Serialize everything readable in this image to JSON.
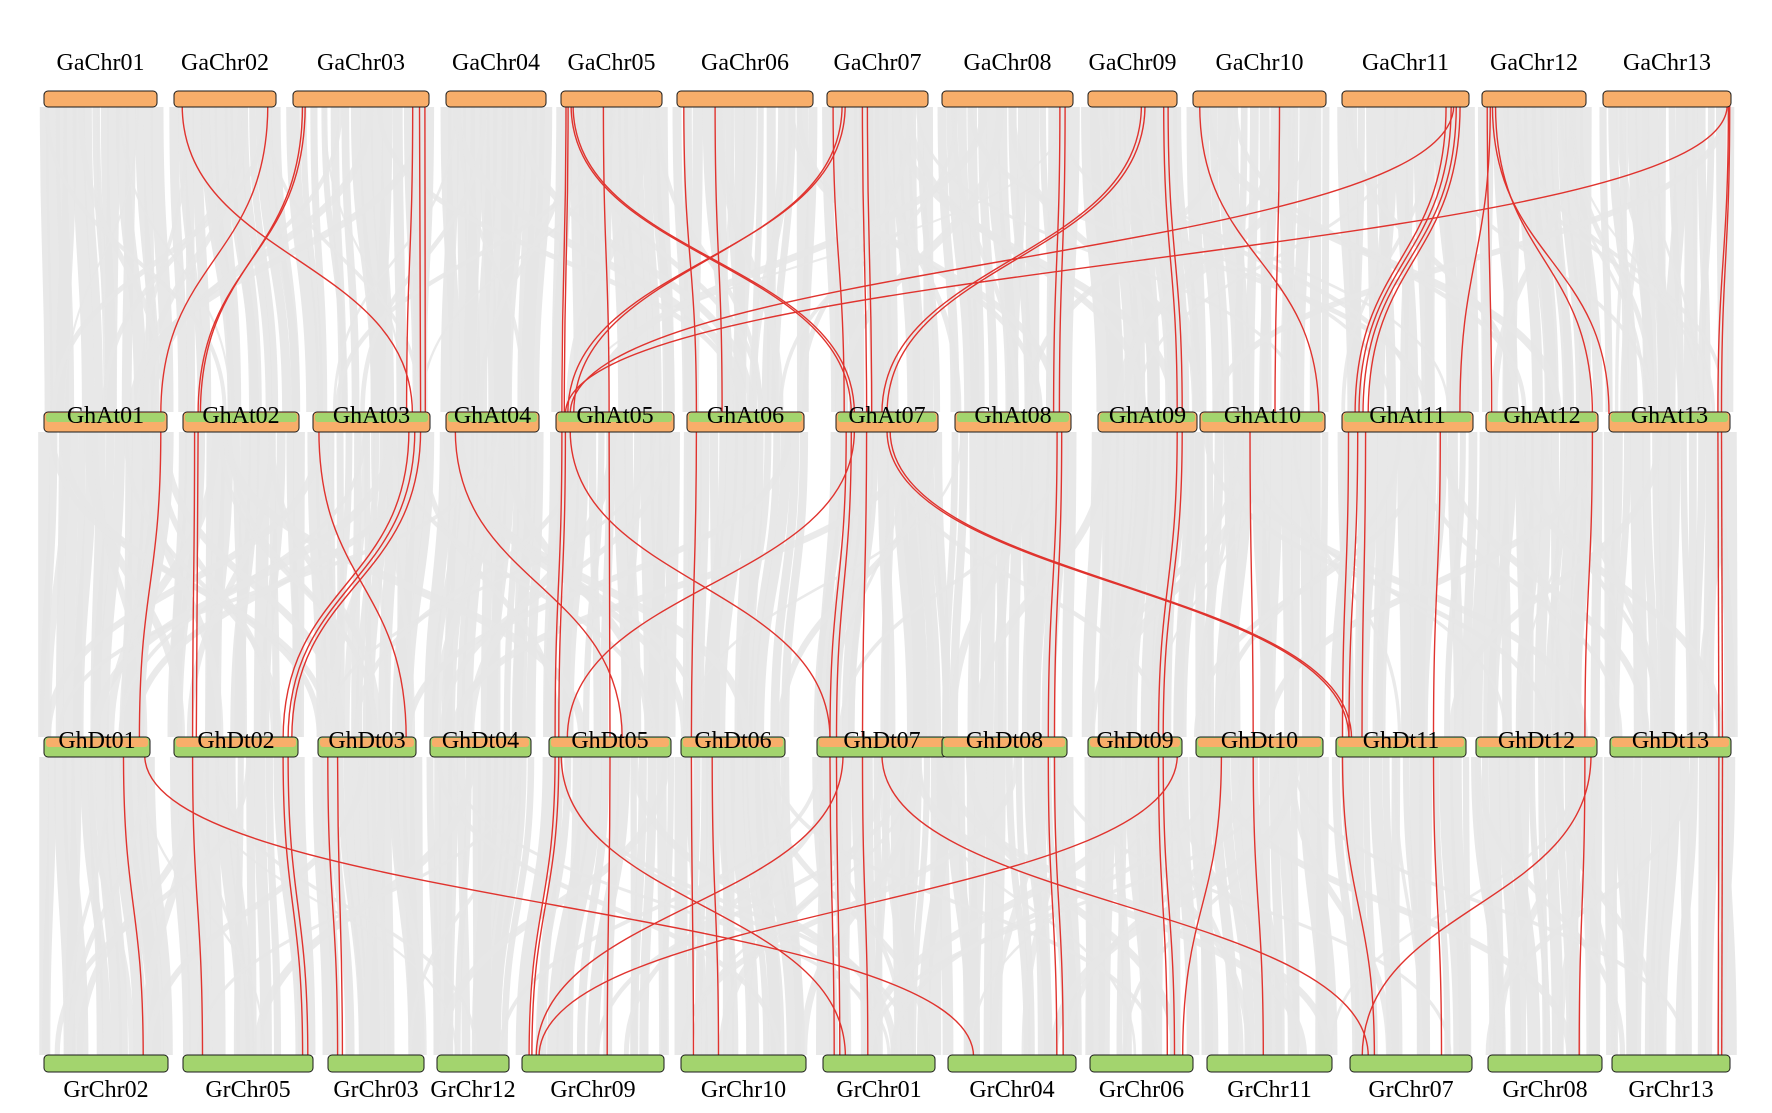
{
  "colors": {
    "background": "#ffffff",
    "ga_bar": "#F8AE6A",
    "gr_bar": "#A3D46E",
    "ghat_fill": "#F8AE6A",
    "ghat_stripe": "#A3D46E",
    "ghdt_fill": "#A3D46E",
    "ghdt_stripe": "#F8AE6A",
    "bar_outline": "#1a1a1a",
    "grey_link": "#e6e6e6",
    "red_link": "#E0332E"
  },
  "rows": {
    "ga": {
      "labels": [
        "GaChr01",
        "GaChr02",
        "GaChr03",
        "GaChr04",
        "GaChr05",
        "GaChr06",
        "GaChr07",
        "GaChr08",
        "GaChr09",
        "GaChr10",
        "GaChr11",
        "GaChr12",
        "GaChr13"
      ]
    },
    "ghat": {
      "labels": [
        "GhAt01",
        "GhAt02",
        "GhAt03",
        "GhAt04",
        "GhAt05",
        "GhAt06",
        "GhAt07",
        "GhAt08",
        "GhAt09",
        "GhAt10",
        "GhAt11",
        "GhAt12",
        "GhAt13"
      ]
    },
    "ghdt": {
      "labels": [
        "GhDt01",
        "GhDt02",
        "GhDt03",
        "GhDt04",
        "GhDt05",
        "GhDt06",
        "GhDt07",
        "GhDt08",
        "GhDt09",
        "GhDt10",
        "GhDt11",
        "GhDt12",
        "GhDt13"
      ]
    },
    "gr": {
      "labels": [
        "GrChr02",
        "GrChr05",
        "GrChr03",
        "GrChr12",
        "GrChr09",
        "GrChr10",
        "GrChr01",
        "GrChr04",
        "GrChr06",
        "GrChr11",
        "GrChr07",
        "GrChr08",
        "GrChr13"
      ]
    }
  },
  "links": {
    "red": [
      {
        "from": "ga",
        "fc": 1,
        "fp": 0.08,
        "to": "ghat",
        "tc": 2,
        "tp": 0.85
      },
      {
        "from": "ga",
        "fc": 1,
        "fp": 0.92,
        "to": "ghat",
        "tc": 0,
        "tp": 0.95
      },
      {
        "from": "ga",
        "fc": 2,
        "fp": 0.07,
        "to": "ghat",
        "tc": 1,
        "tp": 0.15
      },
      {
        "from": "ga",
        "fc": 2,
        "fp": 0.09,
        "to": "ghat",
        "tc": 1,
        "tp": 0.13
      },
      {
        "from": "ga",
        "fc": 2,
        "fp": 0.88,
        "to": "ghat",
        "tc": 2,
        "tp": 0.8
      },
      {
        "from": "ga",
        "fc": 2,
        "fp": 0.93,
        "to": "ghat",
        "tc": 2,
        "tp": 0.92
      },
      {
        "from": "ga",
        "fc": 2,
        "fp": 0.97,
        "to": "ghat",
        "tc": 2,
        "tp": 0.96
      },
      {
        "from": "ga",
        "fc": 4,
        "fp": 0.05,
        "to": "ghat",
        "tc": 4,
        "tp": 0.05
      },
      {
        "from": "ga",
        "fc": 4,
        "fp": 0.07,
        "to": "ghat",
        "tc": 4,
        "tp": 0.07
      },
      {
        "from": "ga",
        "fc": 4,
        "fp": 0.1,
        "to": "ghat",
        "tc": 6,
        "tp": 0.15
      },
      {
        "from": "ga",
        "fc": 4,
        "fp": 0.12,
        "to": "ghat",
        "tc": 6,
        "tp": 0.18
      },
      {
        "from": "ga",
        "fc": 4,
        "fp": 0.42,
        "to": "ghat",
        "tc": 4,
        "tp": 0.45
      },
      {
        "from": "ga",
        "fc": 5,
        "fp": 0.05,
        "to": "ghat",
        "tc": 5,
        "tp": 0.08
      },
      {
        "from": "ga",
        "fc": 5,
        "fp": 0.28,
        "to": "ghat",
        "tc": 5,
        "tp": 0.3
      },
      {
        "from": "ga",
        "fc": 6,
        "fp": 0.06,
        "to": "ghat",
        "tc": 6,
        "tp": 0.08
      },
      {
        "from": "ga",
        "fc": 6,
        "fp": 0.15,
        "to": "ghat",
        "tc": 4,
        "tp": 0.15
      },
      {
        "from": "ga",
        "fc": 6,
        "fp": 0.18,
        "to": "ghat",
        "tc": 4,
        "tp": 0.1
      },
      {
        "from": "ga",
        "fc": 6,
        "fp": 0.35,
        "to": "ghat",
        "tc": 6,
        "tp": 0.3
      },
      {
        "from": "ga",
        "fc": 6,
        "fp": 0.4,
        "to": "ghat",
        "tc": 6,
        "tp": 0.35
      },
      {
        "from": "ga",
        "fc": 7,
        "fp": 0.9,
        "to": "ghat",
        "tc": 7,
        "tp": 0.85
      },
      {
        "from": "ga",
        "fc": 7,
        "fp": 0.94,
        "to": "ghat",
        "tc": 7,
        "tp": 0.9
      },
      {
        "from": "ga",
        "fc": 8,
        "fp": 0.6,
        "to": "ghat",
        "tc": 6,
        "tp": 0.45
      },
      {
        "from": "ga",
        "fc": 8,
        "fp": 0.64,
        "to": "ghat",
        "tc": 6,
        "tp": 0.5
      },
      {
        "from": "ga",
        "fc": 8,
        "fp": 0.85,
        "to": "ghat",
        "tc": 8,
        "tp": 0.8
      },
      {
        "from": "ga",
        "fc": 8,
        "fp": 0.9,
        "to": "ghat",
        "tc": 8,
        "tp": 0.85
      },
      {
        "from": "ga",
        "fc": 9,
        "fp": 0.05,
        "to": "ghat",
        "tc": 9,
        "tp": 0.95
      },
      {
        "from": "ga",
        "fc": 9,
        "fp": 0.65,
        "to": "ghat",
        "tc": 9,
        "tp": 0.6
      },
      {
        "from": "ga",
        "fc": 10,
        "fp": 0.82,
        "to": "ghat",
        "tc": 10,
        "tp": 0.1
      },
      {
        "from": "ga",
        "fc": 10,
        "fp": 0.86,
        "to": "ghat",
        "tc": 10,
        "tp": 0.13
      },
      {
        "from": "ga",
        "fc": 10,
        "fp": 0.9,
        "to": "ghat",
        "tc": 10,
        "tp": 0.16
      },
      {
        "from": "ga",
        "fc": 10,
        "fp": 0.93,
        "to": "ghat",
        "tc": 10,
        "tp": 0.2
      },
      {
        "from": "ga",
        "fc": 10,
        "fp": 0.88,
        "to": "ghat",
        "tc": 4,
        "tp": 0.12
      },
      {
        "from": "ga",
        "fc": 11,
        "fp": 0.05,
        "to": "ghat",
        "tc": 11,
        "tp": 0.05
      },
      {
        "from": "ga",
        "fc": 11,
        "fp": 0.08,
        "to": "ghat",
        "tc": 10,
        "tp": 0.9
      },
      {
        "from": "ga",
        "fc": 11,
        "fp": 0.1,
        "to": "ghat",
        "tc": 12,
        "tp": 0.0
      },
      {
        "from": "ga",
        "fc": 11,
        "fp": 0.13,
        "to": "ghat",
        "tc": 11,
        "tp": 0.95
      },
      {
        "from": "ga",
        "fc": 12,
        "fp": 0.98,
        "to": "ghat",
        "tc": 12,
        "tp": 0.9
      },
      {
        "from": "ga",
        "fc": 12,
        "fp": 0.99,
        "to": "ghat",
        "tc": 12,
        "tp": 0.93
      },
      {
        "from": "ga",
        "fc": 12,
        "fp": 0.97,
        "to": "ghat",
        "tc": 4,
        "tp": 0.08
      },
      {
        "from": "ghat",
        "tc": 0,
        "fc": 0,
        "fp": 0.95,
        "to": "ghdt",
        "tp": 0.9
      },
      {
        "from": "ghat",
        "fc": 1,
        "fp": 0.1,
        "to": "ghdt",
        "tc": 1,
        "tp": 0.15
      },
      {
        "from": "ghat",
        "fc": 1,
        "fp": 0.13,
        "to": "ghdt",
        "tc": 1,
        "tp": 0.18
      },
      {
        "from": "ghat",
        "fc": 2,
        "fp": 0.05,
        "to": "ghdt",
        "tc": 2,
        "tp": 0.9
      },
      {
        "from": "ghat",
        "fc": 2,
        "fp": 0.82,
        "to": "ghdt",
        "tc": 1,
        "tp": 0.88
      },
      {
        "from": "ghat",
        "fc": 2,
        "fp": 0.87,
        "to": "ghdt",
        "tc": 1,
        "tp": 0.92
      },
      {
        "from": "ghat",
        "fc": 2,
        "fp": 0.92,
        "to": "ghdt",
        "tc": 1,
        "tp": 0.95
      },
      {
        "from": "ghat",
        "fc": 3,
        "fp": 0.1,
        "to": "ghdt",
        "tc": 4,
        "tp": 0.6
      },
      {
        "from": "ghat",
        "fc": 4,
        "fp": 0.05,
        "to": "ghdt",
        "tc": 4,
        "tp": 0.05
      },
      {
        "from": "ghat",
        "fc": 4,
        "fp": 0.08,
        "to": "ghdt",
        "tc": 4,
        "tp": 0.08
      },
      {
        "from": "ghat",
        "fc": 4,
        "fp": 0.12,
        "to": "ghdt",
        "tc": 6,
        "tp": 0.1
      },
      {
        "from": "ghat",
        "fc": 4,
        "fp": 0.45,
        "to": "ghdt",
        "tc": 4,
        "tp": 0.5
      },
      {
        "from": "ghat",
        "fc": 5,
        "fp": 0.08,
        "to": "ghdt",
        "tc": 5,
        "tp": 0.1
      },
      {
        "from": "ghat",
        "fc": 6,
        "fp": 0.1,
        "to": "ghdt",
        "tc": 6,
        "tp": 0.1
      },
      {
        "from": "ghat",
        "fc": 6,
        "fp": 0.15,
        "to": "ghdt",
        "tc": 6,
        "tp": 0.15
      },
      {
        "from": "ghat",
        "fc": 6,
        "fp": 0.3,
        "to": "ghdt",
        "tc": 6,
        "tp": 0.35
      },
      {
        "from": "ghat",
        "fc": 6,
        "fp": 0.18,
        "to": "ghdt",
        "tc": 4,
        "tp": 0.15
      },
      {
        "from": "ghat",
        "fc": 6,
        "fp": 0.5,
        "to": "ghdt",
        "tc": 10,
        "tp": 0.1
      },
      {
        "from": "ghat",
        "fc": 6,
        "fp": 0.53,
        "to": "ghdt",
        "tc": 10,
        "tp": 0.12
      },
      {
        "from": "ghat",
        "fc": 7,
        "fp": 0.88,
        "to": "ghdt",
        "tc": 7,
        "tp": 0.85
      },
      {
        "from": "ghat",
        "fc": 7,
        "fp": 0.92,
        "to": "ghdt",
        "tc": 7,
        "tp": 0.9
      },
      {
        "from": "ghat",
        "fc": 8,
        "fp": 0.8,
        "to": "ghdt",
        "tc": 8,
        "tp": 0.75
      },
      {
        "from": "ghat",
        "fc": 8,
        "fp": 0.85,
        "to": "ghdt",
        "tc": 8,
        "tp": 0.8
      },
      {
        "from": "ghat",
        "fc": 9,
        "fp": 0.4,
        "to": "ghdt",
        "tc": 9,
        "tp": 0.45
      },
      {
        "from": "ghat",
        "fc": 10,
        "fp": 0.05,
        "to": "ghdt",
        "tc": 10,
        "tp": 0.05
      },
      {
        "from": "ghat",
        "fc": 10,
        "fp": 0.12,
        "to": "ghdt",
        "tc": 10,
        "tp": 0.1
      },
      {
        "from": "ghat",
        "fc": 10,
        "fp": 0.18,
        "to": "ghdt",
        "tc": 10,
        "tp": 0.2
      },
      {
        "from": "ghat",
        "fc": 10,
        "fp": 0.75,
        "to": "ghdt",
        "tc": 10,
        "tp": 0.75
      },
      {
        "from": "ghat",
        "fc": 11,
        "fp": 0.95,
        "to": "ghdt",
        "tc": 11,
        "tp": 0.9
      },
      {
        "from": "ghat",
        "fc": 12,
        "fp": 0.9,
        "to": "ghdt",
        "tc": 12,
        "tp": 0.9
      },
      {
        "from": "ghat",
        "fc": 12,
        "fp": 0.93,
        "to": "ghdt",
        "tc": 12,
        "tp": 0.93
      },
      {
        "from": "ghdt",
        "fc": 0,
        "fp": 0.75,
        "to": "gr",
        "tc": 0,
        "tp": 0.8
      },
      {
        "from": "ghdt",
        "fc": 0,
        "fp": 0.95,
        "to": "gr",
        "tc": 7,
        "tp": 0.2
      },
      {
        "from": "ghdt",
        "fc": 1,
        "fp": 0.15,
        "to": "gr",
        "tc": 1,
        "tp": 0.15
      },
      {
        "from": "ghdt",
        "fc": 1,
        "fp": 0.88,
        "to": "gr",
        "tc": 1,
        "tp": 0.92
      },
      {
        "from": "ghdt",
        "fc": 1,
        "fp": 0.92,
        "to": "gr",
        "tc": 1,
        "tp": 0.96
      },
      {
        "from": "ghdt",
        "fc": 2,
        "fp": 0.1,
        "to": "gr",
        "tc": 2,
        "tp": 0.1
      },
      {
        "from": "ghdt",
        "fc": 2,
        "fp": 0.2,
        "to": "gr",
        "tc": 2,
        "tp": 0.15
      },
      {
        "from": "ghdt",
        "fc": 4,
        "fp": 0.05,
        "to": "gr",
        "tc": 4,
        "tp": 0.05
      },
      {
        "from": "ghdt",
        "fc": 4,
        "fp": 0.08,
        "to": "gr",
        "tc": 4,
        "tp": 0.07
      },
      {
        "from": "ghdt",
        "fc": 4,
        "fp": 0.1,
        "to": "gr",
        "tc": 6,
        "tp": 0.2
      },
      {
        "from": "ghdt",
        "fc": 4,
        "fp": 0.5,
        "to": "gr",
        "tc": 4,
        "tp": 0.6
      },
      {
        "from": "ghdt",
        "fc": 5,
        "fp": 0.1,
        "to": "gr",
        "tc": 5,
        "tp": 0.1
      },
      {
        "from": "ghdt",
        "fc": 5,
        "fp": 0.3,
        "to": "gr",
        "tc": 5,
        "tp": 0.3
      },
      {
        "from": "ghdt",
        "fc": 6,
        "fp": 0.1,
        "to": "gr",
        "tc": 6,
        "tp": 0.1
      },
      {
        "from": "ghdt",
        "fc": 6,
        "fp": 0.15,
        "to": "gr",
        "tc": 6,
        "tp": 0.15
      },
      {
        "from": "ghdt",
        "fc": 6,
        "fp": 0.35,
        "to": "gr",
        "tc": 6,
        "tp": 0.4
      },
      {
        "from": "ghdt",
        "fc": 6,
        "fp": 0.2,
        "to": "gr",
        "tc": 4,
        "tp": 0.1
      },
      {
        "from": "ghdt",
        "fc": 6,
        "fp": 0.5,
        "to": "gr",
        "tc": 10,
        "tp": 0.15
      },
      {
        "from": "ghdt",
        "fc": 7,
        "fp": 0.85,
        "to": "gr",
        "tc": 7,
        "tp": 0.85
      },
      {
        "from": "ghdt",
        "fc": 7,
        "fp": 0.9,
        "to": "gr",
        "tc": 7,
        "tp": 0.9
      },
      {
        "from": "ghdt",
        "fc": 8,
        "fp": 0.75,
        "to": "gr",
        "tc": 8,
        "tp": 0.75
      },
      {
        "from": "ghdt",
        "fc": 8,
        "fp": 0.8,
        "to": "gr",
        "tc": 8,
        "tp": 0.82
      },
      {
        "from": "ghdt",
        "fc": 8,
        "fp": 0.95,
        "to": "gr",
        "tc": 4,
        "tp": 0.12
      },
      {
        "from": "ghdt",
        "fc": 9,
        "fp": 0.45,
        "to": "gr",
        "tc": 9,
        "tp": 0.45
      },
      {
        "from": "ghdt",
        "fc": 9,
        "fp": 0.2,
        "to": "gr",
        "tc": 8,
        "tp": 0.9
      },
      {
        "from": "ghdt",
        "fc": 10,
        "fp": 0.05,
        "to": "gr",
        "tc": 10,
        "tp": 0.2
      },
      {
        "from": "ghdt",
        "fc": 10,
        "fp": 0.75,
        "to": "gr",
        "tc": 10,
        "tp": 0.75
      },
      {
        "from": "ghdt",
        "fc": 11,
        "fp": 0.9,
        "to": "gr",
        "tc": 11,
        "tp": 0.8
      },
      {
        "from": "ghdt",
        "fc": 11,
        "fp": 0.95,
        "to": "gr",
        "tc": 10,
        "tp": 0.1
      },
      {
        "from": "ghdt",
        "fc": 12,
        "fp": 0.9,
        "to": "gr",
        "tc": 12,
        "tp": 0.9
      },
      {
        "from": "ghdt",
        "fc": 12,
        "fp": 0.93,
        "to": "gr",
        "tc": 12,
        "tp": 0.93
      }
    ]
  }
}
